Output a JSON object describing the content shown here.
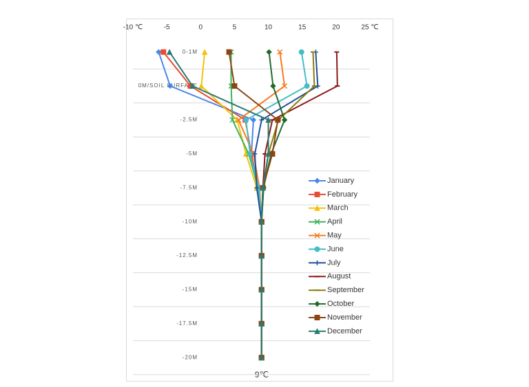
{
  "chart_data": {
    "type": "line",
    "orientation": "horizontal",
    "categories": [
      "0-1M",
      "0M/SOIL SURFACE",
      "-2.5M",
      "-5M",
      "-7.5M",
      "-10M",
      "-12.5M",
      "-15M",
      "-17.5M",
      "-20M"
    ],
    "xlim": [
      -10,
      25
    ],
    "xticks": [
      {
        "value": -10,
        "label": "-10 ℃"
      },
      -5,
      0,
      5,
      10,
      15,
      20,
      {
        "value": 25,
        "label": "25 ℃"
      }
    ],
    "annotation": "9℃",
    "legend": "right",
    "series": [
      {
        "name": "January",
        "color": "#4a86e8",
        "marker": "diamond",
        "values": [
          -6.2,
          -4.5,
          7.8,
          7.5,
          8.5,
          9,
          9,
          9,
          9,
          9
        ]
      },
      {
        "name": "February",
        "color": "#e94b35",
        "marker": "square",
        "values": [
          -5.5,
          -1.5,
          6.6,
          7.5,
          8.5,
          9,
          9,
          9,
          9,
          9
        ]
      },
      {
        "name": "March",
        "color": "#f4c20d",
        "marker": "triangle",
        "values": [
          0.6,
          0.1,
          5.4,
          6.7,
          8.3,
          9,
          9,
          9,
          9,
          9
        ]
      },
      {
        "name": "April",
        "color": "#3cb35a",
        "marker": "x",
        "values": [
          4.5,
          4.5,
          4.7,
          7.1,
          8.5,
          9,
          9,
          9,
          9,
          9
        ]
      },
      {
        "name": "May",
        "color": "#f57c21",
        "marker": "x",
        "values": [
          11.7,
          12.4,
          5.6,
          7.8,
          8.7,
          9,
          9,
          9,
          9,
          9
        ]
      },
      {
        "name": "June",
        "color": "#46bdc6",
        "marker": "circle",
        "values": [
          14.9,
          15.7,
          6.7,
          7.3,
          8.6,
          9,
          9,
          9,
          9,
          9
        ]
      },
      {
        "name": "July",
        "color": "#1f4e9c",
        "marker": "plus",
        "values": [
          17.0,
          17.3,
          9.0,
          8.0,
          8.3,
          9,
          9,
          9,
          9,
          9
        ]
      },
      {
        "name": "August",
        "color": "#8b1a1a",
        "marker": "line",
        "values": [
          20.1,
          20.2,
          10.6,
          9.5,
          9.2,
          9,
          9,
          9,
          9,
          9
        ]
      },
      {
        "name": "September",
        "color": "#8b7d0a",
        "marker": "line",
        "values": [
          16.6,
          16.8,
          11.5,
          10.0,
          9.3,
          9,
          9,
          9,
          9,
          9
        ]
      },
      {
        "name": "October",
        "color": "#1e6b2b",
        "marker": "diamond",
        "values": [
          10.1,
          10.7,
          12.4,
          10.4,
          9.3,
          9,
          9,
          9,
          9,
          9
        ]
      },
      {
        "name": "November",
        "color": "#8b4513",
        "marker": "square",
        "values": [
          4.2,
          5.0,
          11.4,
          10.6,
          9.2,
          9,
          9,
          9,
          9,
          9
        ]
      },
      {
        "name": "December",
        "color": "#2a7a72",
        "marker": "triangle",
        "values": [
          -4.6,
          -1.2,
          10.0,
          10.0,
          9.2,
          9,
          9,
          9,
          9,
          9
        ]
      }
    ]
  }
}
